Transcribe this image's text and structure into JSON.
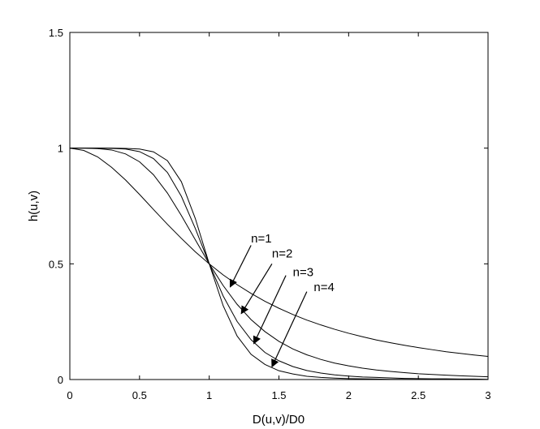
{
  "chart_data": {
    "type": "line",
    "title": "",
    "xlabel": "D(u,v)/D0",
    "ylabel": "h(u,v)",
    "xlim": [
      0,
      3
    ],
    "ylim": [
      0,
      1.5
    ],
    "xticks": [
      0,
      0.5,
      1,
      1.5,
      2,
      2.5,
      3
    ],
    "xtick_labels": [
      "0",
      "0.5",
      "1",
      "1.5",
      "2",
      "2.5",
      "3"
    ],
    "yticks": [
      0,
      0.5,
      1,
      1.5
    ],
    "ytick_labels": [
      "0",
      "0.5",
      "1",
      "1.5"
    ],
    "grid": false,
    "legend": "none",
    "line_color": "#000000",
    "x": [
      0,
      0.1,
      0.2,
      0.3,
      0.4,
      0.5,
      0.6,
      0.7,
      0.8,
      0.9,
      1,
      1.1,
      1.2,
      1.3,
      1.4,
      1.5,
      1.6,
      1.7,
      1.8,
      1.9,
      2,
      2.1,
      2.2,
      2.3,
      2.4,
      2.5,
      2.6,
      2.7,
      2.8,
      2.9,
      3
    ],
    "series": [
      {
        "name": "n=1",
        "values": [
          1,
          0.99,
          0.962,
          0.917,
          0.862,
          0.8,
          0.735,
          0.671,
          0.61,
          0.552,
          0.5,
          0.452,
          0.41,
          0.372,
          0.338,
          0.308,
          0.281,
          0.257,
          0.236,
          0.217,
          0.2,
          0.185,
          0.171,
          0.159,
          0.148,
          0.138,
          0.129,
          0.12,
          0.113,
          0.106,
          0.1
        ]
      },
      {
        "name": "n=2",
        "values": [
          1,
          1,
          0.998,
          0.992,
          0.975,
          0.941,
          0.885,
          0.806,
          0.709,
          0.604,
          0.5,
          0.406,
          0.325,
          0.259,
          0.207,
          0.165,
          0.132,
          0.107,
          0.087,
          0.071,
          0.059,
          0.049,
          0.041,
          0.035,
          0.03,
          0.025,
          0.022,
          0.019,
          0.016,
          0.014,
          0.012
        ]
      },
      {
        "name": "n=3",
        "values": [
          1,
          1,
          1,
          0.999,
          0.996,
          0.985,
          0.955,
          0.895,
          0.792,
          0.653,
          0.5,
          0.361,
          0.251,
          0.172,
          0.117,
          0.081,
          0.056,
          0.039,
          0.028,
          0.02,
          0.015,
          0.011,
          0.009,
          0.007,
          0.005,
          0.004,
          0.003,
          0.003,
          0.002,
          0.002,
          0.001
        ]
      },
      {
        "name": "n=4",
        "values": [
          1,
          1,
          1,
          1,
          0.999,
          0.996,
          0.984,
          0.946,
          0.855,
          0.696,
          0.5,
          0.319,
          0.188,
          0.109,
          0.065,
          0.038,
          0.024,
          0.014,
          0.009,
          0.006,
          0.004,
          0.003,
          0.002,
          0.001,
          0.001,
          0.001,
          0.001,
          0,
          0,
          0,
          0
        ]
      }
    ],
    "annotations": [
      {
        "text": "n=1",
        "label_x": 1.3,
        "label_y": 0.61,
        "arrow_from": [
          1.3,
          0.58
        ],
        "arrow_to": [
          1.15,
          0.4
        ]
      },
      {
        "text": "n=2",
        "label_x": 1.45,
        "label_y": 0.545,
        "arrow_from": [
          1.45,
          0.5
        ],
        "arrow_to": [
          1.23,
          0.285
        ]
      },
      {
        "text": "n=3",
        "label_x": 1.6,
        "label_y": 0.465,
        "arrow_from": [
          1.55,
          0.45
        ],
        "arrow_to": [
          1.32,
          0.155
        ]
      },
      {
        "text": "n=4",
        "label_x": 1.75,
        "label_y": 0.4,
        "arrow_from": [
          1.7,
          0.38
        ],
        "arrow_to": [
          1.45,
          0.055
        ]
      }
    ]
  }
}
